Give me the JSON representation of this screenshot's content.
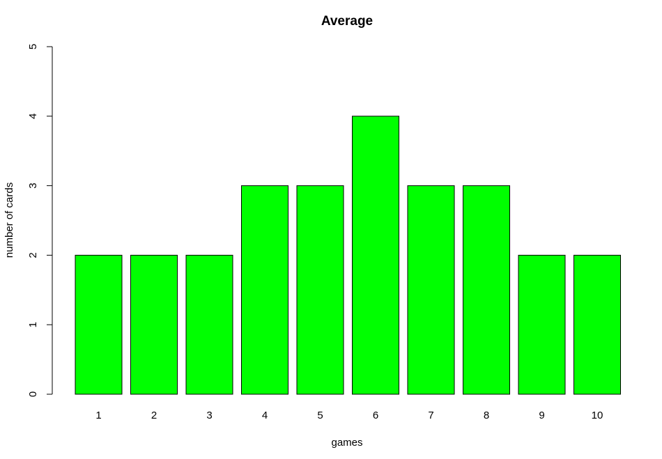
{
  "chart_data": {
    "type": "bar",
    "title": "Average",
    "xlabel": "games",
    "ylabel": "number of cards",
    "categories": [
      "1",
      "2",
      "3",
      "4",
      "5",
      "6",
      "7",
      "8",
      "9",
      "10"
    ],
    "values": [
      2,
      2,
      2,
      3,
      3,
      4,
      3,
      3,
      2,
      2
    ],
    "ylim": [
      0,
      5
    ],
    "yticks": [
      0,
      1,
      2,
      3,
      4,
      5
    ],
    "grid": false,
    "bar_color": "#00ff00",
    "border_color": "#000000"
  }
}
